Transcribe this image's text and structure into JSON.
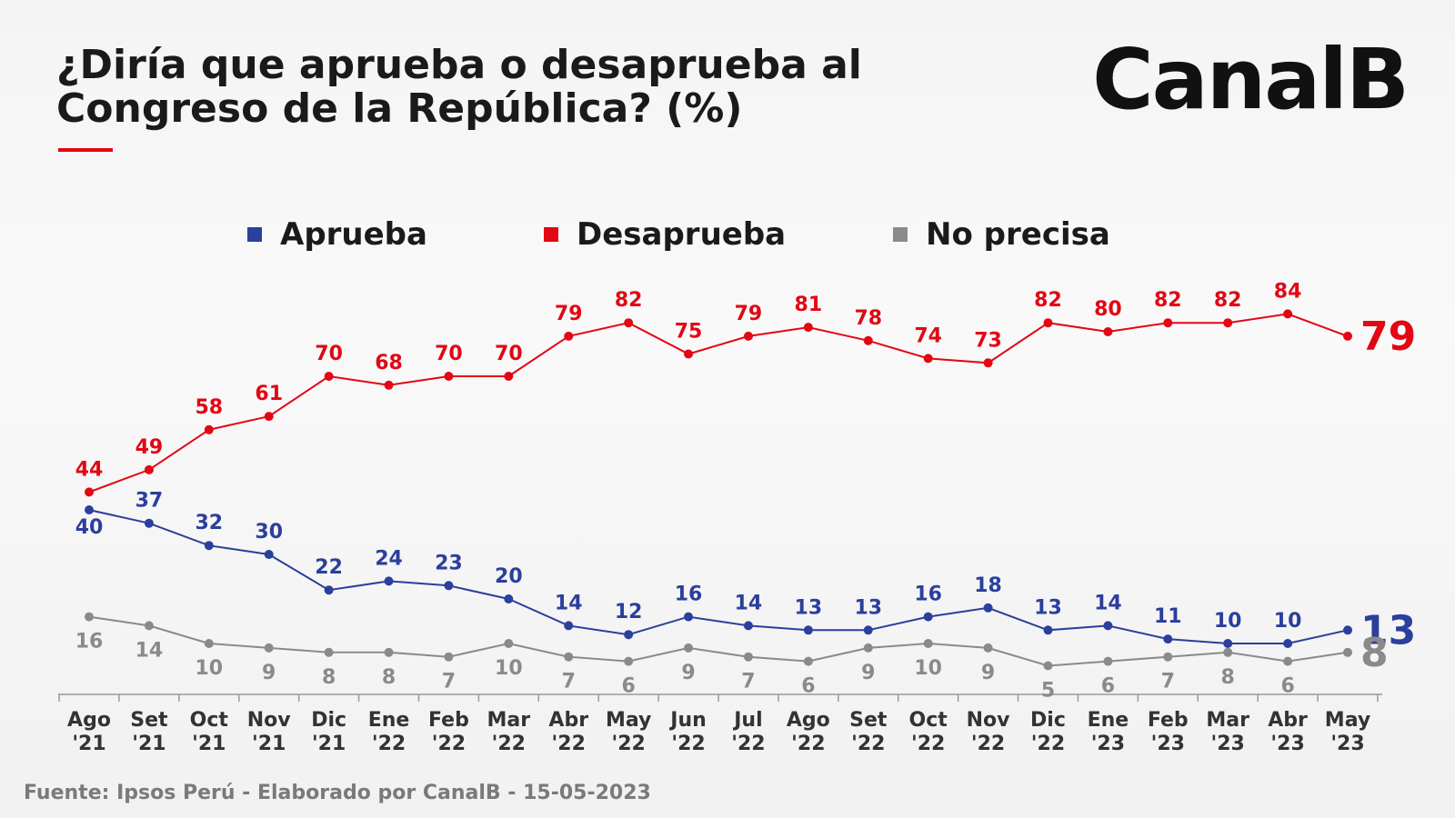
{
  "header": {
    "title_line1": "¿Diría que aprueba o desaprueba al",
    "title_line2": "Congreso de la República? (%)",
    "logo": "CanalB",
    "accent_color": "#e30613"
  },
  "legend": [
    {
      "label": "Aprueba",
      "color": "#2b3f9c"
    },
    {
      "label": "Desaprueba",
      "color": "#e30613"
    },
    {
      "label": "No precisa",
      "color": "#8a8a8a"
    }
  ],
  "chart_data": {
    "type": "line",
    "title": "¿Diría que aprueba o desaprueba al Congreso de la República? (%)",
    "xlabel": "",
    "ylabel": "",
    "x": [
      [
        "Ago",
        "'21"
      ],
      [
        "Set",
        "'21"
      ],
      [
        "Oct",
        "'21"
      ],
      [
        "Nov",
        "'21"
      ],
      [
        "Dic",
        "'21"
      ],
      [
        "Ene",
        "'22"
      ],
      [
        "Feb",
        "'22"
      ],
      [
        "Mar",
        "'22"
      ],
      [
        "Abr",
        "'22"
      ],
      [
        "May",
        "'22"
      ],
      [
        "Jun",
        "'22"
      ],
      [
        "Jul",
        "'22"
      ],
      [
        "Ago",
        "'22"
      ],
      [
        "Set",
        "'22"
      ],
      [
        "Oct",
        "'22"
      ],
      [
        "Nov",
        "'22"
      ],
      [
        "Dic",
        "'22"
      ],
      [
        "Ene",
        "'23"
      ],
      [
        "Feb",
        "'23"
      ],
      [
        "Mar",
        "'23"
      ],
      [
        "Abr",
        "'23"
      ],
      [
        "May",
        "'23"
      ]
    ],
    "ylim": [
      0,
      100
    ],
    "grid": false,
    "legend_position": "top",
    "series": [
      {
        "name": "Aprueba",
        "color": "#2b3f9c",
        "values": [
          40,
          37,
          32,
          30,
          22,
          24,
          23,
          20,
          14,
          12,
          16,
          14,
          13,
          13,
          16,
          18,
          13,
          14,
          11,
          10,
          10,
          13
        ]
      },
      {
        "name": "Desaprueba",
        "color": "#e30613",
        "values": [
          44,
          49,
          58,
          61,
          70,
          68,
          70,
          70,
          79,
          82,
          75,
          79,
          81,
          78,
          74,
          73,
          82,
          80,
          82,
          82,
          84,
          79
        ]
      },
      {
        "name": "No precisa",
        "color": "#8a8a8a",
        "values": [
          16,
          14,
          10,
          9,
          8,
          8,
          7,
          10,
          7,
          6,
          9,
          7,
          6,
          9,
          10,
          9,
          5,
          6,
          7,
          8,
          6,
          8
        ]
      }
    ]
  },
  "source": "Fuente: Ipsos Perú - Elaborado por CanalB - 15-05-2023"
}
